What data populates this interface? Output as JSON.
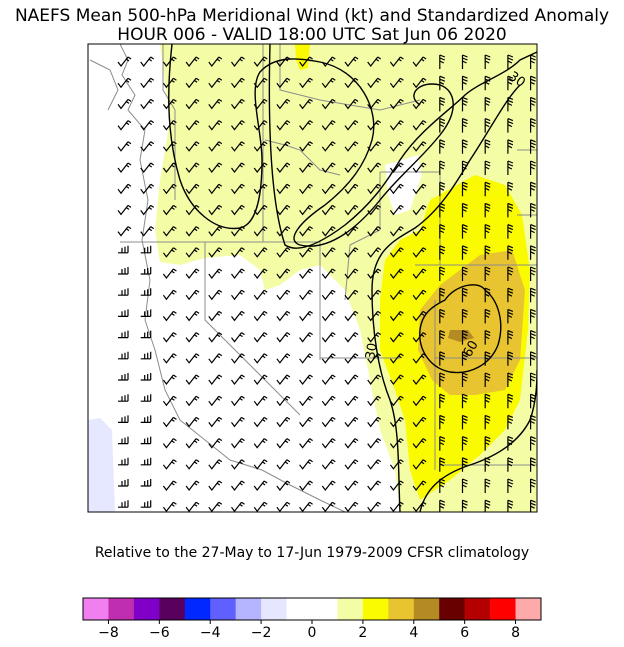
{
  "title": {
    "line1": "NAEFS Mean 500-hPa Meridional Wind (kt) and Standardized Anomaly",
    "line2": "HOUR 006 - VALID 18:00 UTC Sat Jun 06 2020"
  },
  "subtitle": "Relative to the 27-May to 17-Jun 1979-2009 CFSR climatology",
  "map": {
    "contour_labels": [
      "30",
      "30",
      "60"
    ],
    "shading_colors": {
      "light_yellow": "#f4fca6",
      "yellow": "#fafa00",
      "gold": "#e8c431",
      "dark_gold": "#b48a22",
      "pale_blue": "#e6e8ff"
    }
  },
  "colorbar": {
    "colors": [
      "#f080f0",
      "#c02eb0",
      "#8000c8",
      "#58005c",
      "#0028ff",
      "#6060ff",
      "#b4b4ff",
      "#e6e6ff",
      "#ffffff",
      "#ffffff",
      "#f4fca6",
      "#fafa00",
      "#e8c431",
      "#b48a22",
      "#680000",
      "#b40000",
      "#ff0000",
      "#ffaaaa"
    ],
    "tick_labels": [
      "−8",
      "−6",
      "−4",
      "−2",
      "0",
      "2",
      "4",
      "6",
      "8"
    ],
    "tick_values": [
      -8,
      -6,
      -4,
      -2,
      0,
      2,
      4,
      6,
      8
    ]
  }
}
